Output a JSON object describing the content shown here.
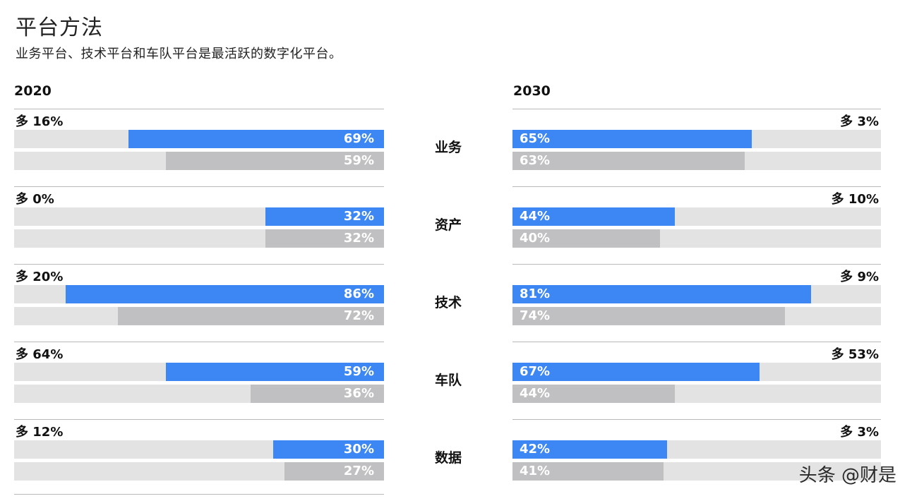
{
  "title": "平台方法",
  "subtitle": "业务平台、技术平台和车队平台是最活跃的数字化平台。",
  "watermark": "头条 @财是",
  "chart_data": {
    "type": "bar",
    "title": "平台方法",
    "subtitle": "业务平台、技术平台和车队平台是最活跃的数字化平台。",
    "categories": [
      "业务",
      "资产",
      "技术",
      "车队",
      "数据"
    ],
    "panels": [
      {
        "year": "2020",
        "diff_labels": [
          "多 16%",
          "多 0%",
          "多 20%",
          "多 64%",
          "多 12%"
        ],
        "series": [
          {
            "values": [
              69,
              32,
              86,
              59,
              30
            ],
            "color": "#3d87f5"
          },
          {
            "values": [
              59,
              32,
              72,
              36,
              27
            ],
            "color": "#c0c0c2"
          }
        ]
      },
      {
        "year": "2030",
        "diff_labels": [
          "多 3%",
          "多 10%",
          "多 9%",
          "多 53%",
          "多 3%"
        ],
        "series": [
          {
            "values": [
              65,
              44,
              81,
              67,
              42
            ],
            "color": "#3d87f5"
          },
          {
            "values": [
              63,
              40,
              74,
              44,
              41
            ],
            "color": "#c0c0c2"
          }
        ]
      }
    ],
    "value_suffix": "%",
    "ylim": [
      0,
      100
    ],
    "grid": false
  }
}
